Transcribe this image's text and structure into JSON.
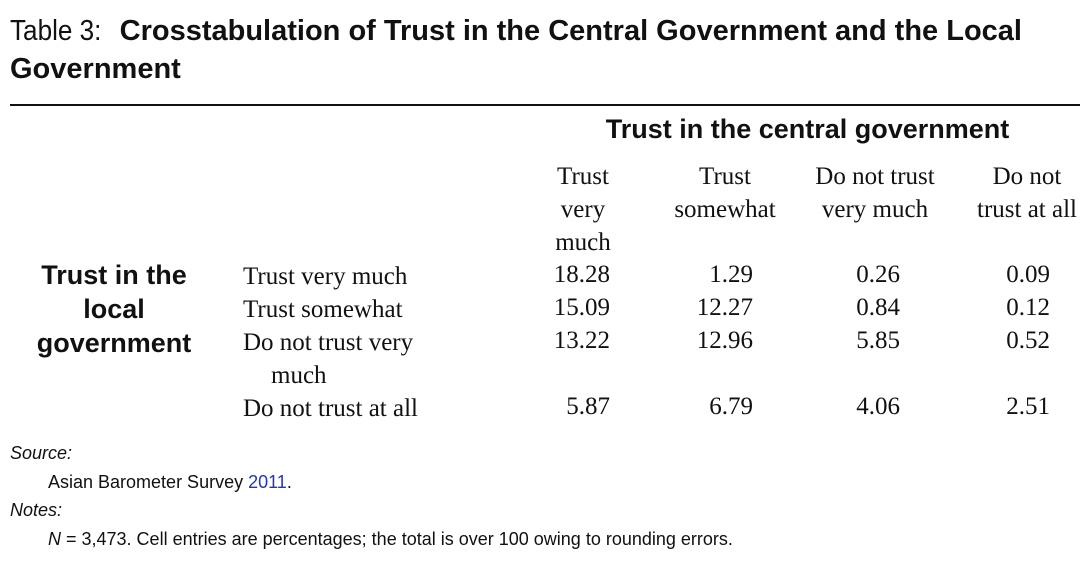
{
  "caption": {
    "label": "Table 3:",
    "title": "Crosstabulation of Trust in the Central Government and the Local Government"
  },
  "table": {
    "spanner": "Trust in the central government",
    "row_group_label": "Trust in the local government",
    "columns": [
      "Trust very much",
      "Trust somewhat",
      "Do not trust very much",
      "Do not trust at all"
    ],
    "rows": [
      {
        "label": "Trust very much",
        "values": [
          "18.28",
          "1.29",
          "0.26",
          "0.09"
        ]
      },
      {
        "label": "Trust somewhat",
        "values": [
          "15.09",
          "12.27",
          "0.84",
          "0.12"
        ]
      },
      {
        "label": "Do not trust very much",
        "values": [
          "13.22",
          "12.96",
          "5.85",
          "0.52"
        ]
      },
      {
        "label": "Do not trust at all",
        "values": [
          "5.87",
          "6.79",
          "4.06",
          "2.51"
        ]
      }
    ]
  },
  "notes": {
    "source_heading": "Source:",
    "source_text": "Asian Barometer Survey",
    "source_year": "2011",
    "source_end": ".",
    "notes_heading": "Notes:",
    "n_symbol": "N",
    "notes_text": " = 3,473. Cell entries are percentages; the total is over 100 owing to rounding errors.",
    "link_color": "#2233cc"
  }
}
